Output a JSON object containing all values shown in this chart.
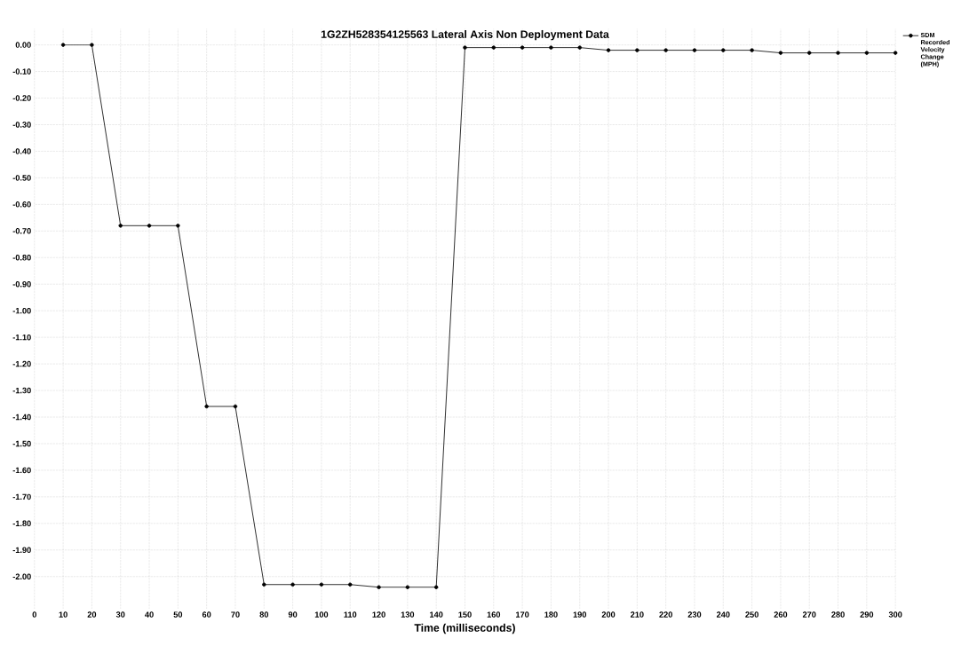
{
  "chart_data": {
    "type": "line",
    "title": "1G2ZH528354125563  Lateral Axis Non Deployment Data",
    "xlabel": "Time (milliseconds)",
    "x": [
      10,
      20,
      30,
      40,
      50,
      60,
      70,
      80,
      90,
      100,
      110,
      120,
      130,
      140,
      150,
      160,
      170,
      180,
      190,
      200,
      210,
      220,
      230,
      240,
      250,
      260,
      270,
      280,
      290,
      300
    ],
    "series": [
      {
        "name": "SDM Recorded Velocity Change (MPH)",
        "color": "#000000",
        "values": [
          0.0,
          0.0,
          -0.68,
          -0.68,
          -0.68,
          -1.36,
          -1.36,
          -2.03,
          -2.03,
          -2.03,
          -2.03,
          -2.04,
          -2.04,
          -2.04,
          -0.01,
          -0.01,
          -0.01,
          -0.01,
          -0.01,
          -0.02,
          -0.02,
          -0.02,
          -0.02,
          -0.02,
          -0.02,
          -0.03,
          -0.03,
          -0.03,
          -0.03,
          -0.03
        ]
      }
    ],
    "xlim": [
      0,
      300
    ],
    "ylim": [
      -2.12,
      0.06
    ],
    "xticks": [
      0,
      10,
      20,
      30,
      40,
      50,
      60,
      70,
      80,
      90,
      100,
      110,
      120,
      130,
      140,
      150,
      160,
      170,
      180,
      190,
      200,
      210,
      220,
      230,
      240,
      250,
      260,
      270,
      280,
      290,
      300
    ],
    "yticks": [
      {
        "value": 0,
        "label": "0.00"
      },
      {
        "value": -0.1,
        "label": "-0.10"
      },
      {
        "value": -0.2,
        "label": "-0.20"
      },
      {
        "value": -0.3,
        "label": "-0.30"
      },
      {
        "value": -0.4,
        "label": "-0.40"
      },
      {
        "value": -0.5,
        "label": "-0.50"
      },
      {
        "value": -0.6,
        "label": "-0.60"
      },
      {
        "value": -0.7,
        "label": "-0.70"
      },
      {
        "value": -0.8,
        "label": "-0.80"
      },
      {
        "value": -0.9,
        "label": "-0.90"
      },
      {
        "value": -1.0,
        "label": "-1.00"
      },
      {
        "value": -1.1,
        "label": "-1.10"
      },
      {
        "value": -1.2,
        "label": "-1.20"
      },
      {
        "value": -1.3,
        "label": "-1.30"
      },
      {
        "value": -1.4,
        "label": "-1.40"
      },
      {
        "value": -1.5,
        "label": "-1.50"
      },
      {
        "value": -1.6,
        "label": "-1.60"
      },
      {
        "value": -1.7,
        "label": "-1.70"
      },
      {
        "value": -1.8,
        "label": "-1.80"
      },
      {
        "value": -1.9,
        "label": "-1.90"
      },
      {
        "value": -2.0,
        "label": "-2.00"
      }
    ],
    "grid": true,
    "legend": "right",
    "marker": "circle",
    "line_style": "solid"
  }
}
